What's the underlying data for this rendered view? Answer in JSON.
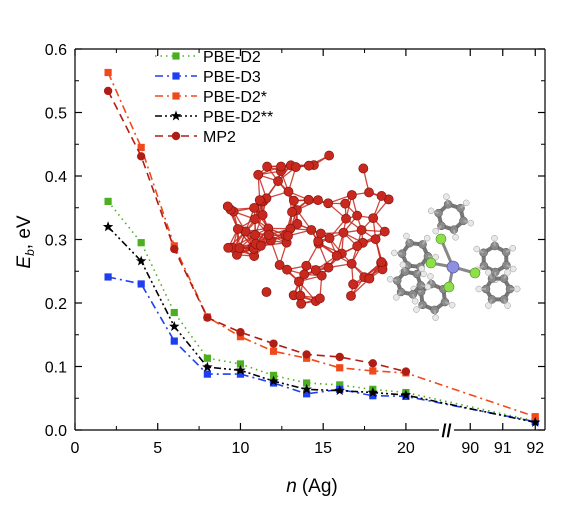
{
  "chart_data": {
    "type": "line",
    "xlabel_var": "n",
    "xlabel_unit": "(Ag)",
    "ylabel_main": "E",
    "ylabel_sub": "b",
    "ylabel_unit": ", eV",
    "ylim": [
      0.0,
      0.6
    ],
    "yticks": [
      "0.0",
      "0.1",
      "0.2",
      "0.3",
      "0.4",
      "0.5",
      "0.6"
    ],
    "x_axis_segments": [
      {
        "range": [
          0,
          22
        ],
        "ticks": [
          0,
          5,
          10,
          15,
          20
        ]
      },
      {
        "range": [
          89.5,
          92.3
        ],
        "ticks": [
          90,
          91,
          92
        ]
      }
    ],
    "x_tick_labels": [
      "0",
      "5",
      "10",
      "15",
      "20",
      "90",
      "91",
      "92"
    ],
    "x_break_symbol": "//",
    "legend_position": "top-center",
    "series": [
      {
        "name": "PBE-D2",
        "color": "#4caf1f",
        "marker": "square",
        "dash": "dot",
        "points": [
          [
            2,
            0.36
          ],
          [
            4,
            0.295
          ],
          [
            6,
            0.185
          ],
          [
            8,
            0.113
          ],
          [
            10,
            0.104
          ],
          [
            12,
            0.086
          ],
          [
            14,
            0.074
          ],
          [
            16,
            0.071
          ],
          [
            18,
            0.064
          ],
          [
            20,
            0.059
          ],
          [
            92,
            0.014
          ]
        ]
      },
      {
        "name": "PBE-D3",
        "color": "#1e3ff0",
        "marker": "square",
        "dash": "dash-dot",
        "points": [
          [
            2,
            0.241
          ],
          [
            4,
            0.23
          ],
          [
            6,
            0.14
          ],
          [
            8,
            0.088
          ],
          [
            10,
            0.088
          ],
          [
            12,
            0.074
          ],
          [
            14,
            0.057
          ],
          [
            16,
            0.064
          ],
          [
            18,
            0.054
          ],
          [
            20,
            0.053
          ],
          [
            92,
            0.013
          ]
        ]
      },
      {
        "name": "PBE-D2*",
        "color": "#f04a1c",
        "marker": "square",
        "dash": "dash-dot",
        "points": [
          [
            2,
            0.563
          ],
          [
            4,
            0.445
          ],
          [
            6,
            0.29
          ],
          [
            8,
            0.178
          ],
          [
            10,
            0.147
          ],
          [
            12,
            0.124
          ],
          [
            14,
            0.113
          ],
          [
            16,
            0.098
          ],
          [
            18,
            0.093
          ],
          [
            20,
            0.09
          ],
          [
            92,
            0.021
          ]
        ]
      },
      {
        "name": "PBE-D2**",
        "color": "#000000",
        "marker": "star",
        "dash": "dash-dot-dot",
        "points": [
          [
            2,
            0.32
          ],
          [
            4,
            0.266
          ],
          [
            6,
            0.163
          ],
          [
            8,
            0.099
          ],
          [
            10,
            0.094
          ],
          [
            12,
            0.077
          ],
          [
            14,
            0.064
          ],
          [
            16,
            0.062
          ],
          [
            18,
            0.059
          ],
          [
            20,
            0.055
          ],
          [
            92,
            0.012
          ]
        ]
      },
      {
        "name": "MP2",
        "color": "#b01d14",
        "marker": "circle",
        "dash": "dash",
        "points": [
          [
            2,
            0.534
          ],
          [
            4,
            0.431
          ],
          [
            6,
            0.285
          ],
          [
            8,
            0.177
          ],
          [
            10,
            0.154
          ],
          [
            12,
            0.136
          ],
          [
            14,
            0.119
          ],
          [
            16,
            0.115
          ],
          [
            18,
            0.105
          ],
          [
            20,
            0.092
          ]
        ]
      }
    ]
  },
  "insets": [
    {
      "name": "silver-cluster-picture",
      "color": "#c8281e"
    },
    {
      "name": "molecule-picture",
      "color": "#8a8a8a"
    }
  ]
}
